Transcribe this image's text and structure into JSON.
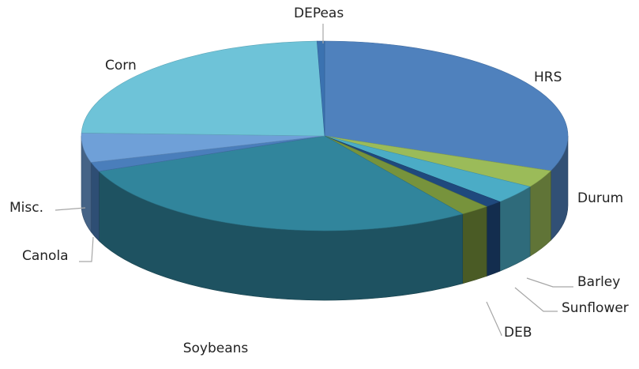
{
  "chart_data": {
    "type": "pie",
    "style": "3d",
    "title": "",
    "start_angle_deg": -90,
    "direction": "clockwise",
    "slices": [
      {
        "label": "HRS",
        "value": 31.0,
        "color": "#4f81bd"
      },
      {
        "label": "Durum",
        "value": 3.0,
        "color": "#9bbb59"
      },
      {
        "label": "Barley",
        "value": 3.2,
        "color": "#4bacc6"
      },
      {
        "label": "Sunflower",
        "value": 1.2,
        "color": "#1f497d"
      },
      {
        "label": "DEB",
        "value": 2.0,
        "color": "#77933c"
      },
      {
        "label": "Soybeans",
        "value": 28.5,
        "color": "#31859c"
      },
      {
        "label": "Canola",
        "value": 1.6,
        "color": "#4a7ebb"
      },
      {
        "label": "Misc.",
        "value": 5.0,
        "color": "#6fa0d8"
      },
      {
        "label": "Corn",
        "value": 24.0,
        "color": "#6ec3d8"
      },
      {
        "label": "DEPeas",
        "value": 0.5,
        "color": "#3b72b0"
      }
    ]
  }
}
